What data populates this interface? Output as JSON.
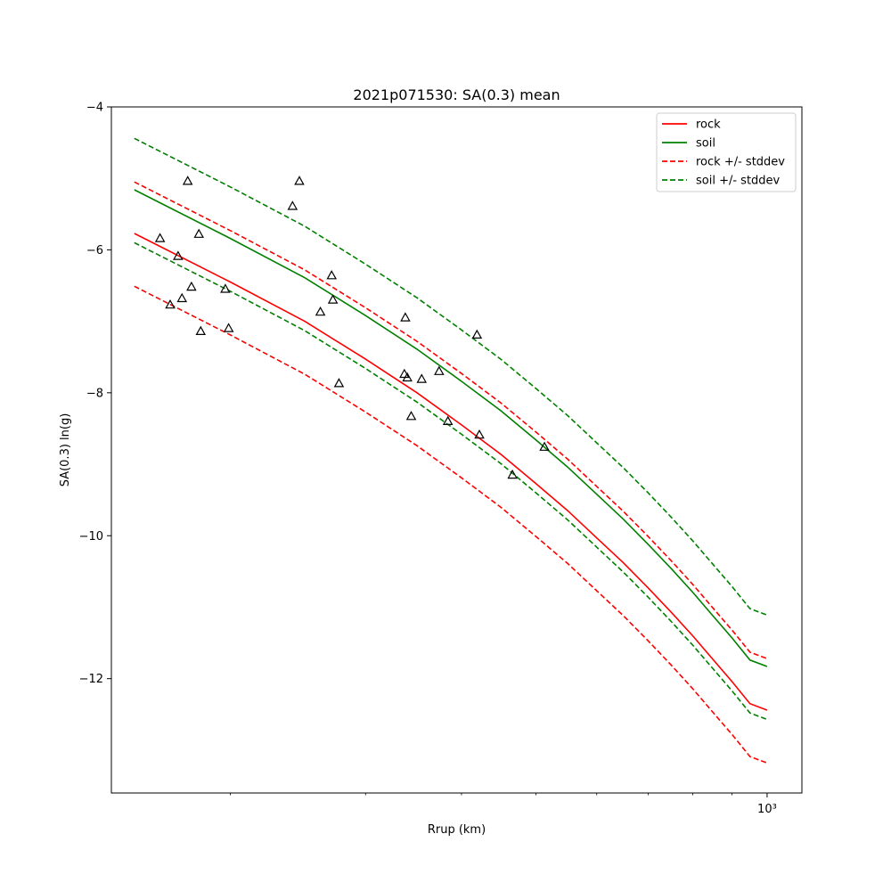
{
  "chart_data": {
    "type": "line",
    "title": "2021p071530: SA(0.3) mean",
    "xlabel": "Rrup (km)",
    "ylabel": "SA(0.3) ln(g)",
    "x_scale": "log",
    "xlim": [
      140,
      1110
    ],
    "ylim": [
      -13.6,
      -4.0
    ],
    "yticks": [
      -4,
      -6,
      -8,
      -10,
      -12
    ],
    "ytick_labels": [
      "−4",
      "−6",
      "−8",
      "−10",
      "−12"
    ],
    "xticks": [
      1000
    ],
    "xtick_labels": [
      "10³"
    ],
    "grid": false,
    "legend_position": "top-right",
    "legend": [
      {
        "label": "rock",
        "color": "#ff0000",
        "style": "solid"
      },
      {
        "label": "soil",
        "color": "#008000",
        "style": "solid"
      },
      {
        "label": "rock +/- stddev",
        "color": "#ff0000",
        "style": "dashed"
      },
      {
        "label": "soil +/- stddev",
        "color": "#008000",
        "style": "dashed"
      }
    ],
    "series": [
      {
        "name": "rock",
        "color": "#ff0000",
        "style": "solid",
        "x": [
          150,
          200,
          250,
          300,
          350,
          400,
          450,
          500,
          550,
          600,
          650,
          700,
          750,
          800,
          850,
          900,
          950,
          1000
        ],
        "y": [
          -5.77,
          -6.45,
          -7.0,
          -7.53,
          -8.0,
          -8.45,
          -8.86,
          -9.27,
          -9.65,
          -10.03,
          -10.38,
          -10.73,
          -11.07,
          -11.4,
          -11.73,
          -12.04,
          -12.35,
          -12.44
        ]
      },
      {
        "name": "soil",
        "color": "#008000",
        "style": "solid",
        "x": [
          150,
          200,
          250,
          300,
          350,
          400,
          450,
          500,
          550,
          600,
          650,
          700,
          750,
          800,
          850,
          900,
          950,
          1000
        ],
        "y": [
          -5.16,
          -5.84,
          -6.39,
          -6.92,
          -7.39,
          -7.84,
          -8.25,
          -8.66,
          -9.04,
          -9.42,
          -9.77,
          -10.12,
          -10.46,
          -10.79,
          -11.12,
          -11.43,
          -11.74,
          -11.83
        ]
      },
      {
        "name": "rock +/- stddev",
        "color": "#ff0000",
        "style": "dashed",
        "x": [
          150,
          200,
          250,
          300,
          350,
          400,
          450,
          500,
          550,
          600,
          650,
          700,
          750,
          800,
          850,
          900,
          950,
          1000
        ],
        "y": [
          -5.05,
          -5.73,
          -6.28,
          -6.81,
          -7.28,
          -7.73,
          -8.14,
          -8.55,
          -8.93,
          -9.31,
          -9.66,
          -10.01,
          -10.35,
          -10.68,
          -11.01,
          -11.32,
          -11.63,
          -11.72
        ]
      },
      {
        "name": "rock +/- stddev",
        "color": "#ff0000",
        "style": "dashed",
        "x": [
          150,
          200,
          250,
          300,
          350,
          400,
          450,
          500,
          550,
          600,
          650,
          700,
          750,
          800,
          850,
          900,
          950,
          1000
        ],
        "y": [
          -6.51,
          -7.19,
          -7.74,
          -8.27,
          -8.74,
          -9.19,
          -9.6,
          -10.01,
          -10.39,
          -10.77,
          -11.12,
          -11.47,
          -11.81,
          -12.14,
          -12.47,
          -12.78,
          -13.09,
          -13.18
        ]
      },
      {
        "name": "soil +/- stddev",
        "color": "#008000",
        "style": "dashed",
        "x": [
          150,
          200,
          250,
          300,
          350,
          400,
          450,
          500,
          550,
          600,
          650,
          700,
          750,
          800,
          850,
          900,
          950,
          1000
        ],
        "y": [
          -4.44,
          -5.12,
          -5.67,
          -6.2,
          -6.67,
          -7.12,
          -7.53,
          -7.94,
          -8.32,
          -8.7,
          -9.05,
          -9.4,
          -9.74,
          -10.07,
          -10.4,
          -10.71,
          -11.02,
          -11.11
        ]
      },
      {
        "name": "soil +/- stddev",
        "color": "#008000",
        "style": "dashed",
        "x": [
          150,
          200,
          250,
          300,
          350,
          400,
          450,
          500,
          550,
          600,
          650,
          700,
          750,
          800,
          850,
          900,
          950,
          1000
        ],
        "y": [
          -5.9,
          -6.58,
          -7.13,
          -7.66,
          -8.13,
          -8.58,
          -8.99,
          -9.4,
          -9.78,
          -10.16,
          -10.51,
          -10.86,
          -11.2,
          -11.53,
          -11.86,
          -12.17,
          -12.48,
          -12.57
        ]
      }
    ],
    "observations": {
      "marker": "triangle-open",
      "color": "#000000",
      "points": [
        {
          "x": 176,
          "y": -5.04
        },
        {
          "x": 162,
          "y": -5.84
        },
        {
          "x": 182,
          "y": -5.78
        },
        {
          "x": 171,
          "y": -6.09
        },
        {
          "x": 173,
          "y": -6.68
        },
        {
          "x": 178,
          "y": -6.52
        },
        {
          "x": 167,
          "y": -6.77
        },
        {
          "x": 183,
          "y": -7.14
        },
        {
          "x": 197,
          "y": -6.55
        },
        {
          "x": 199,
          "y": -7.1
        },
        {
          "x": 241,
          "y": -5.39
        },
        {
          "x": 246,
          "y": -5.04
        },
        {
          "x": 262,
          "y": -6.87
        },
        {
          "x": 271,
          "y": -6.36
        },
        {
          "x": 272,
          "y": -6.7
        },
        {
          "x": 277,
          "y": -7.87
        },
        {
          "x": 338,
          "y": -6.95
        },
        {
          "x": 337,
          "y": -7.74
        },
        {
          "x": 340,
          "y": -7.79
        },
        {
          "x": 344,
          "y": -8.33
        },
        {
          "x": 355,
          "y": -7.81
        },
        {
          "x": 374,
          "y": -7.7
        },
        {
          "x": 384,
          "y": -8.4
        },
        {
          "x": 419,
          "y": -7.19
        },
        {
          "x": 422,
          "y": -8.59
        },
        {
          "x": 466,
          "y": -9.15
        },
        {
          "x": 513,
          "y": -8.76
        }
      ]
    }
  }
}
